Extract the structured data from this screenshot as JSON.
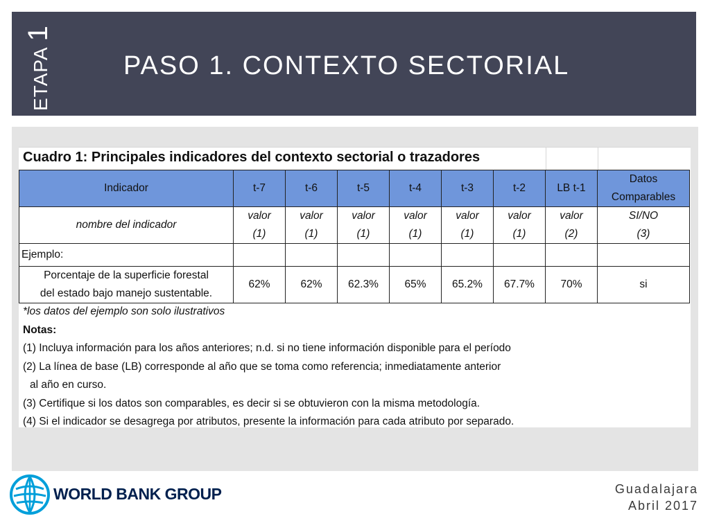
{
  "slide": {
    "stage_word": "ETAPA",
    "stage_number": "1",
    "title": "PASO 1. CONTEXTO SECTORIAL"
  },
  "table": {
    "caption": "Cuadro 1: Principales indicadores del contexto sectorial o trazadores",
    "headers": [
      "Indicador",
      "t-7",
      "t-6",
      "t-5",
      "t-4",
      "t-3",
      "t-2",
      "LB t-1",
      "Datos",
      "Comparables"
    ],
    "names_row": {
      "label": "nombre del indicador",
      "cells": [
        [
          "valor",
          "(1)"
        ],
        [
          "valor",
          "(1)"
        ],
        [
          "valor",
          "(1)"
        ],
        [
          "valor",
          "(1)"
        ],
        [
          "valor",
          "(1)"
        ],
        [
          "valor",
          "(1)"
        ],
        [
          "valor",
          "(2)"
        ],
        [
          "SI/NO",
          "(3)"
        ]
      ]
    },
    "example_label": "Ejemplo:",
    "example_row": {
      "label_line1": "Porcentaje de la superficie forestal",
      "label_line2": "del estado bajo manejo sustentable.",
      "values": [
        "62%",
        "62%",
        "62.3%",
        "65%",
        "65.2%",
        "67.7%",
        "70%",
        "si"
      ]
    }
  },
  "notes": {
    "disclaimer": "*los datos del ejemplo son solo ilustrativos",
    "heading": "Notas:",
    "n1": "(1) Incluya información para los años anteriores; n.d. si no tiene información  disponible para el período",
    "n2a": "(2) La línea de base (LB) corresponde al año que se toma como referencia; inmediatamente anterior",
    "n2b": "al año en curso.",
    "n3": "(3) Certifique si los datos son comparables, es decir si se obtuvieron con la misma metodología.",
    "n4": "(4) Si el indicador se desagrega por atributos, presente la información para cada atributo por separado."
  },
  "footer": {
    "brand": "WORLD BANK GROUP",
    "city": "Guadalajara",
    "date": "Abril 2017"
  },
  "colors": {
    "header_band": "#424557",
    "table_header": "#6f96db",
    "brand_navy": "#00204e",
    "brand_blue": "#009fda"
  }
}
